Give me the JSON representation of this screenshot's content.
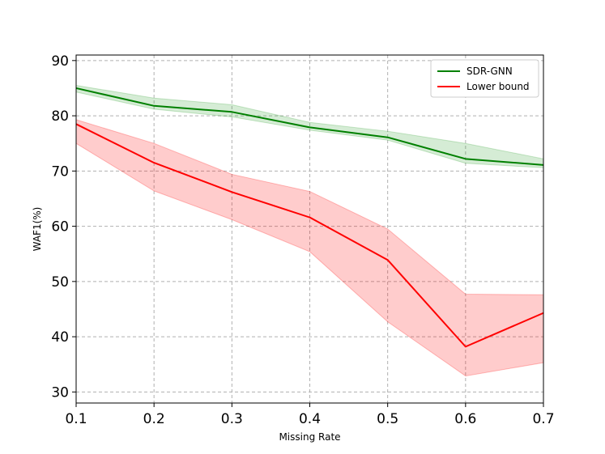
{
  "chart_data": {
    "type": "line",
    "xlabel": "Missing Rate",
    "ylabel": "WAF1(%)",
    "x": [
      0.1,
      0.2,
      0.3,
      0.4,
      0.5,
      0.6,
      0.7
    ],
    "xlim": [
      0.1,
      0.7
    ],
    "ylim": [
      28,
      91
    ],
    "xticks": [
      "0.1",
      "0.2",
      "0.3",
      "0.4",
      "0.5",
      "0.6",
      "0.7"
    ],
    "yticks": [
      "30",
      "40",
      "50",
      "60",
      "70",
      "80",
      "90"
    ],
    "grid": true,
    "legend_position": "top-right",
    "series": [
      {
        "name": "SDR-GNN",
        "color": "#008000",
        "band_color": "#2ca02c",
        "values": [
          85.0,
          81.8,
          80.7,
          77.9,
          76.1,
          72.2,
          71.1
        ],
        "upper": [
          85.5,
          83.2,
          82.0,
          78.8,
          77.2,
          75.0,
          72.2
        ],
        "lower": [
          84.3,
          81.2,
          79.8,
          77.4,
          75.6,
          71.4,
          70.6
        ]
      },
      {
        "name": "Lower bound",
        "color": "#ff0000",
        "band_color": "#ff0000",
        "values": [
          78.5,
          71.5,
          66.2,
          61.6,
          53.9,
          38.2,
          44.3
        ],
        "upper": [
          79.3,
          75.0,
          69.4,
          66.3,
          59.5,
          47.7,
          47.6
        ],
        "lower": [
          75.0,
          66.4,
          61.2,
          55.4,
          42.7,
          32.9,
          35.3
        ]
      }
    ]
  }
}
